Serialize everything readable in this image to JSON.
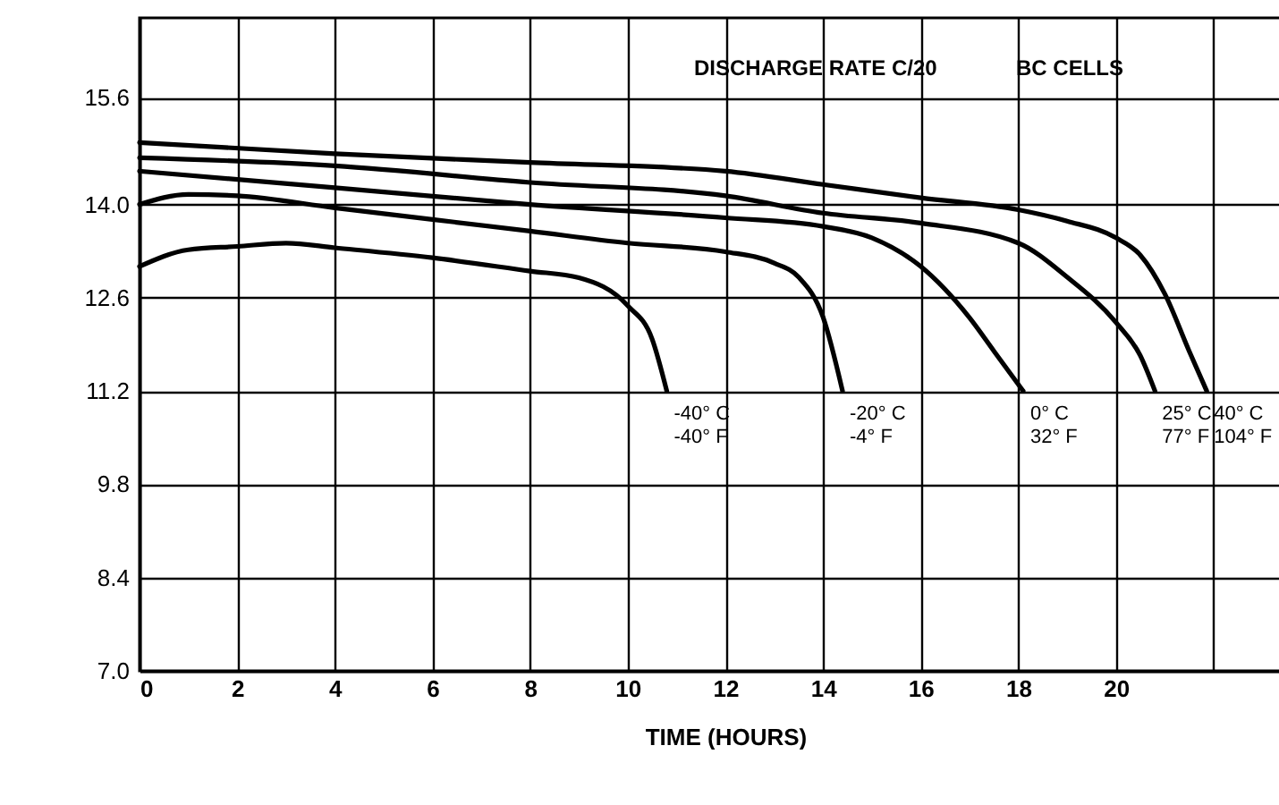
{
  "chart_data": {
    "type": "line",
    "title": "DISCHARGE RATE C/20",
    "subtitle": "BC CELLS",
    "xlabel": "TIME (HOURS)",
    "xlim": [
      0,
      24
    ],
    "ylim": [
      7.0,
      16.8
    ],
    "xticks": [
      0,
      2,
      4,
      6,
      8,
      10,
      12,
      14,
      16,
      18,
      20,
      {
        "value": 22,
        "label": null
      }
    ],
    "yticks": [
      {
        "value": 7.0,
        "label": "7.0"
      },
      8.4,
      9.8,
      11.2,
      12.6,
      {
        "value": 14.0,
        "label": "14.0"
      },
      15.6
    ],
    "grid": true,
    "legend": false,
    "marker": "none",
    "line_style": "solid",
    "series": [
      {
        "name": "-40° C\n-40° F",
        "color": "#000000",
        "x": [
          0,
          1,
          2,
          3,
          4,
          6,
          8,
          9,
          10,
          10.5,
          10.8
        ],
        "values": [
          13.07,
          13.32,
          13.37,
          13.42,
          13.35,
          13.2,
          13.0,
          12.9,
          12.48,
          11.98,
          11.2
        ]
      },
      {
        "name": "-20° C\n-4° F",
        "color": "#000000",
        "x": [
          0,
          1,
          2,
          4,
          8,
          10,
          12,
          13,
          13.5,
          14,
          14.4
        ],
        "values": [
          14.0,
          14.15,
          14.13,
          13.95,
          13.6,
          13.42,
          13.29,
          13.12,
          12.91,
          12.31,
          11.2
        ]
      },
      {
        "name": "0° C\n32° F",
        "color": "#000000",
        "x": [
          0,
          4,
          8,
          12,
          14,
          15,
          16,
          17,
          17.5,
          18.1
        ],
        "values": [
          14.5,
          14.25,
          14.0,
          13.8,
          13.67,
          13.5,
          13.07,
          12.3,
          11.8,
          11.2
        ]
      },
      {
        "name": "25° C\n77° F",
        "color": "#000000",
        "x": [
          0,
          4,
          8,
          12,
          14,
          16,
          18,
          19,
          20,
          20.5,
          20.8
        ],
        "values": [
          14.7,
          14.58,
          14.33,
          14.13,
          13.87,
          13.72,
          13.42,
          12.91,
          12.23,
          11.73,
          11.2
        ]
      },
      {
        "name": "40° C\n104° F",
        "color": "#000000",
        "x": [
          0,
          4,
          8,
          12,
          14,
          16,
          18,
          19,
          20,
          20.5,
          21,
          21.5,
          21.86
        ],
        "values": [
          14.93,
          14.76,
          14.63,
          14.5,
          14.3,
          14.1,
          13.92,
          13.75,
          13.5,
          13.24,
          12.66,
          11.8,
          11.2
        ]
      }
    ]
  }
}
